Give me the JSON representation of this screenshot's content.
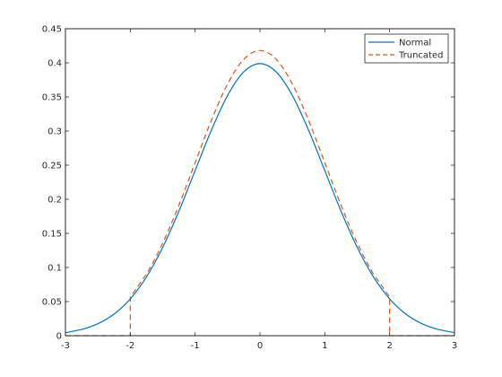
{
  "chart_data": {
    "type": "line",
    "xlim": [
      -3,
      3
    ],
    "ylim": [
      0,
      0.45
    ],
    "xticks": [
      -3,
      -2,
      -1,
      0,
      1,
      2,
      3
    ],
    "xtick_labels": [
      "-3",
      "-2",
      "-1",
      "0",
      "1",
      "2",
      "3"
    ],
    "yticks": [
      0,
      0.05,
      0.1,
      0.15,
      0.2,
      0.25,
      0.3,
      0.35,
      0.4,
      0.45
    ],
    "ytick_labels": [
      "0",
      "0.05",
      "0.1",
      "0.15",
      "0.2",
      "0.25",
      "0.3",
      "0.35",
      "0.4",
      "0.45"
    ],
    "grid": false,
    "legend_position": "top-right",
    "series": [
      {
        "name": "Normal",
        "color": "#0072BD",
        "style": "solid",
        "x": [
          -3,
          -2.75,
          -2.5,
          -2.25,
          -2,
          -1.75,
          -1.5,
          -1.25,
          -1,
          -0.75,
          -0.5,
          -0.25,
          0,
          0.25,
          0.5,
          0.75,
          1,
          1.25,
          1.5,
          1.75,
          2,
          2.25,
          2.5,
          2.75,
          3
        ],
        "y": [
          0.0044,
          0.0091,
          0.0175,
          0.0317,
          0.054,
          0.0863,
          0.1295,
          0.1826,
          0.242,
          0.3011,
          0.3521,
          0.3867,
          0.3989,
          0.3867,
          0.3521,
          0.3011,
          0.242,
          0.1826,
          0.1295,
          0.0863,
          0.054,
          0.0317,
          0.0175,
          0.0091,
          0.0044
        ]
      },
      {
        "name": "Truncated",
        "color": "#D95319",
        "style": "dashed",
        "x": [
          -3,
          -2,
          -2,
          -1.75,
          -1.5,
          -1.25,
          -1,
          -0.75,
          -0.5,
          -0.25,
          0,
          0.25,
          0.5,
          0.75,
          1,
          1.25,
          1.5,
          1.75,
          2,
          2,
          3
        ],
        "y": [
          0,
          0,
          0.0566,
          0.0904,
          0.1357,
          0.1913,
          0.2536,
          0.3155,
          0.3689,
          0.4052,
          0.418,
          0.4052,
          0.3689,
          0.3155,
          0.2536,
          0.1913,
          0.1357,
          0.0904,
          0.0566,
          0,
          0
        ]
      }
    ]
  }
}
